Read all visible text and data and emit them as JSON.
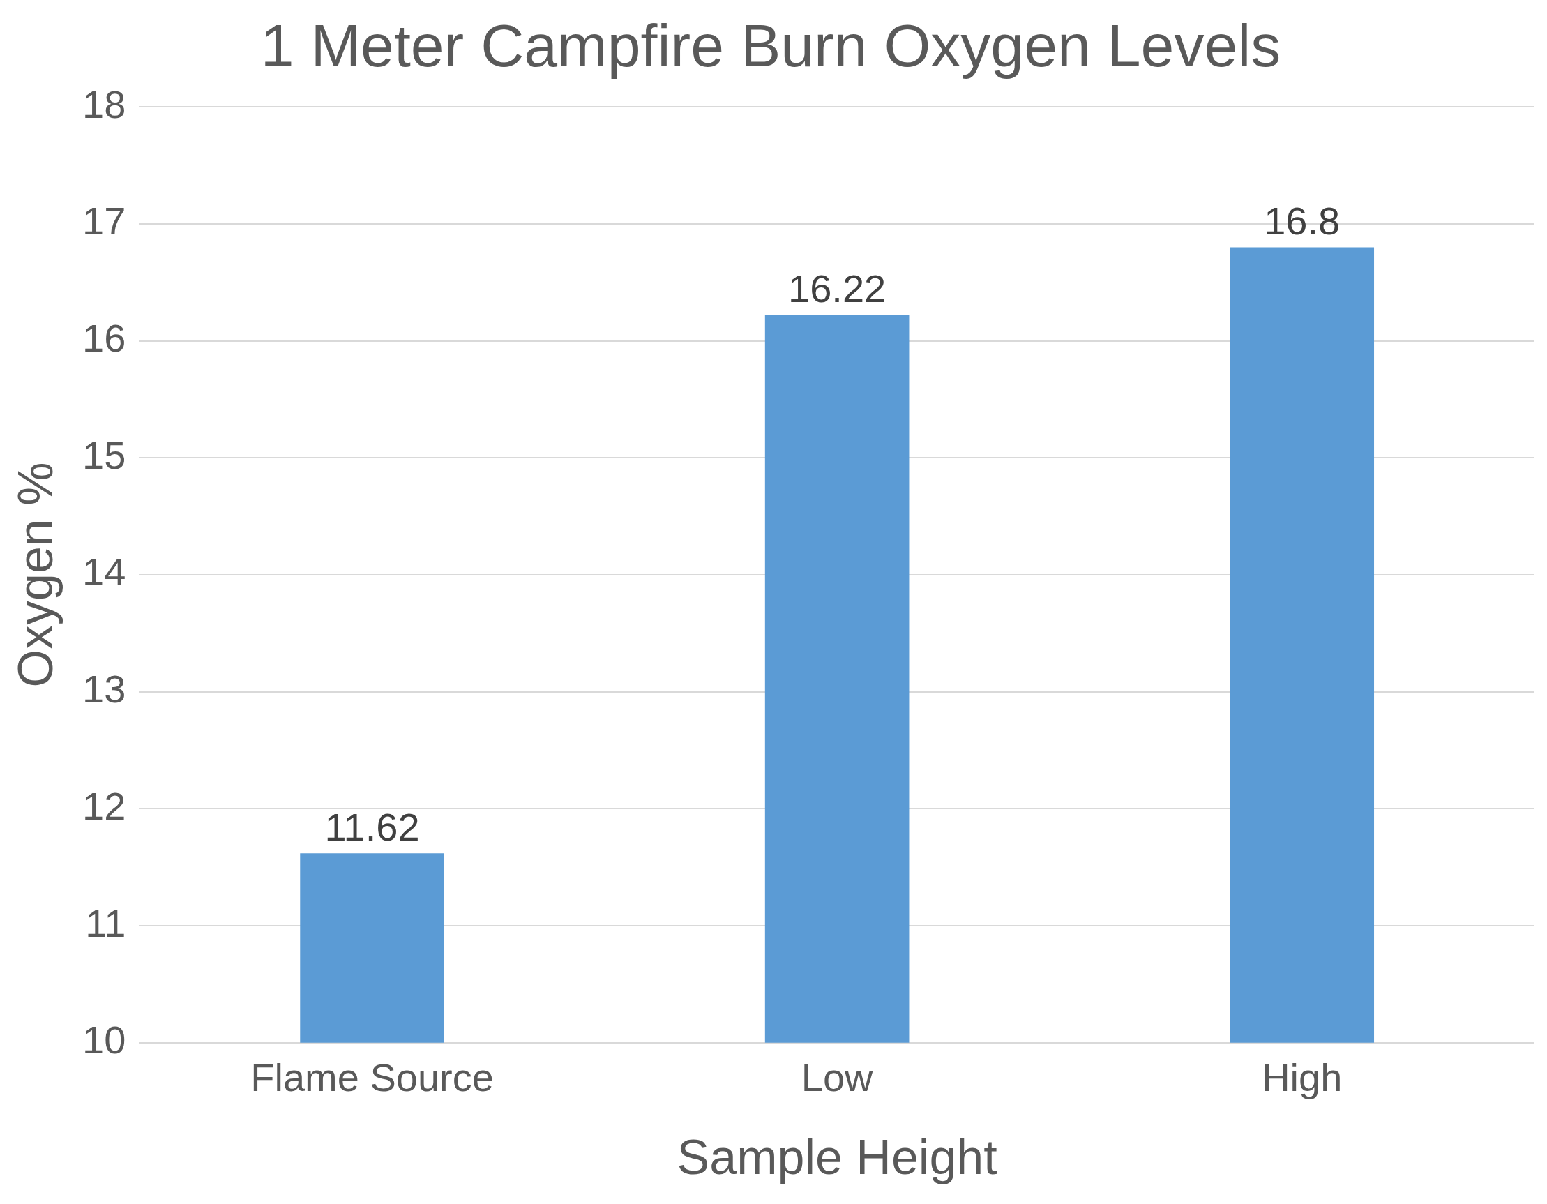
{
  "chart_data": {
    "type": "bar",
    "title": "1 Meter Campfire Burn Oxygen Levels",
    "xlabel": "Sample Height",
    "ylabel": "Oxygen %",
    "categories": [
      "Flame Source",
      "Low",
      "High"
    ],
    "values": [
      11.62,
      16.22,
      16.8
    ],
    "color": "#5b9bd5",
    "ylim": [
      10,
      18
    ],
    "yticks": [
      10,
      11,
      12,
      13,
      14,
      15,
      16,
      17,
      18
    ],
    "grid": "y",
    "data_labels": true
  }
}
